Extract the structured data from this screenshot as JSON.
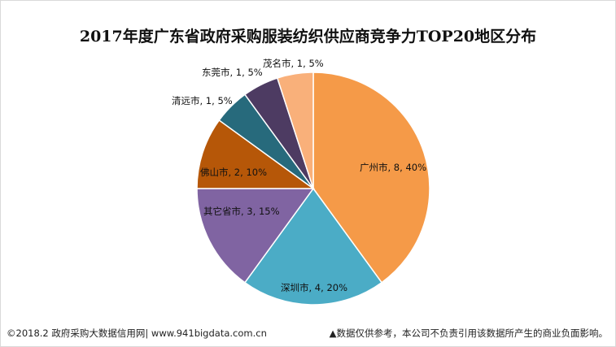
{
  "chart_data": {
    "type": "pie",
    "title": "2017年度广东省政府采购服装纺织供应商竞争力TOP20地区分布",
    "slices": [
      {
        "label": "广州市, 8, 40%",
        "name": "广州市",
        "count": 8,
        "percent": 40,
        "color": "#F59A48"
      },
      {
        "label": "深圳市, 4, 20%",
        "name": "深圳市",
        "count": 4,
        "percent": 20,
        "color": "#4BACC6"
      },
      {
        "label": "其它省市, 3, 15%",
        "name": "其它省市",
        "count": 3,
        "percent": 15,
        "color": "#8064A2"
      },
      {
        "label": "佛山市, 2, 10%",
        "name": "佛山市",
        "count": 2,
        "percent": 10,
        "color": "#B65708"
      },
      {
        "label": "清远市, 1, 5%",
        "name": "清远市",
        "count": 1,
        "percent": 5,
        "color": "#276A7C"
      },
      {
        "label": "东莞市, 1, 5%",
        "name": "东莞市",
        "count": 1,
        "percent": 5,
        "color": "#4D3B62"
      },
      {
        "label": "茂名市, 1, 5%",
        "name": "茂名市",
        "count": 1,
        "percent": 5,
        "color": "#F9B07A"
      }
    ]
  },
  "footer": {
    "source": "©2018.2 政府采购大数据信用网| www.941bigdata.com.cn",
    "disclaimer": "▲数据仅供参考，本公司不负责引用该数据所产生的商业负面影响。"
  }
}
